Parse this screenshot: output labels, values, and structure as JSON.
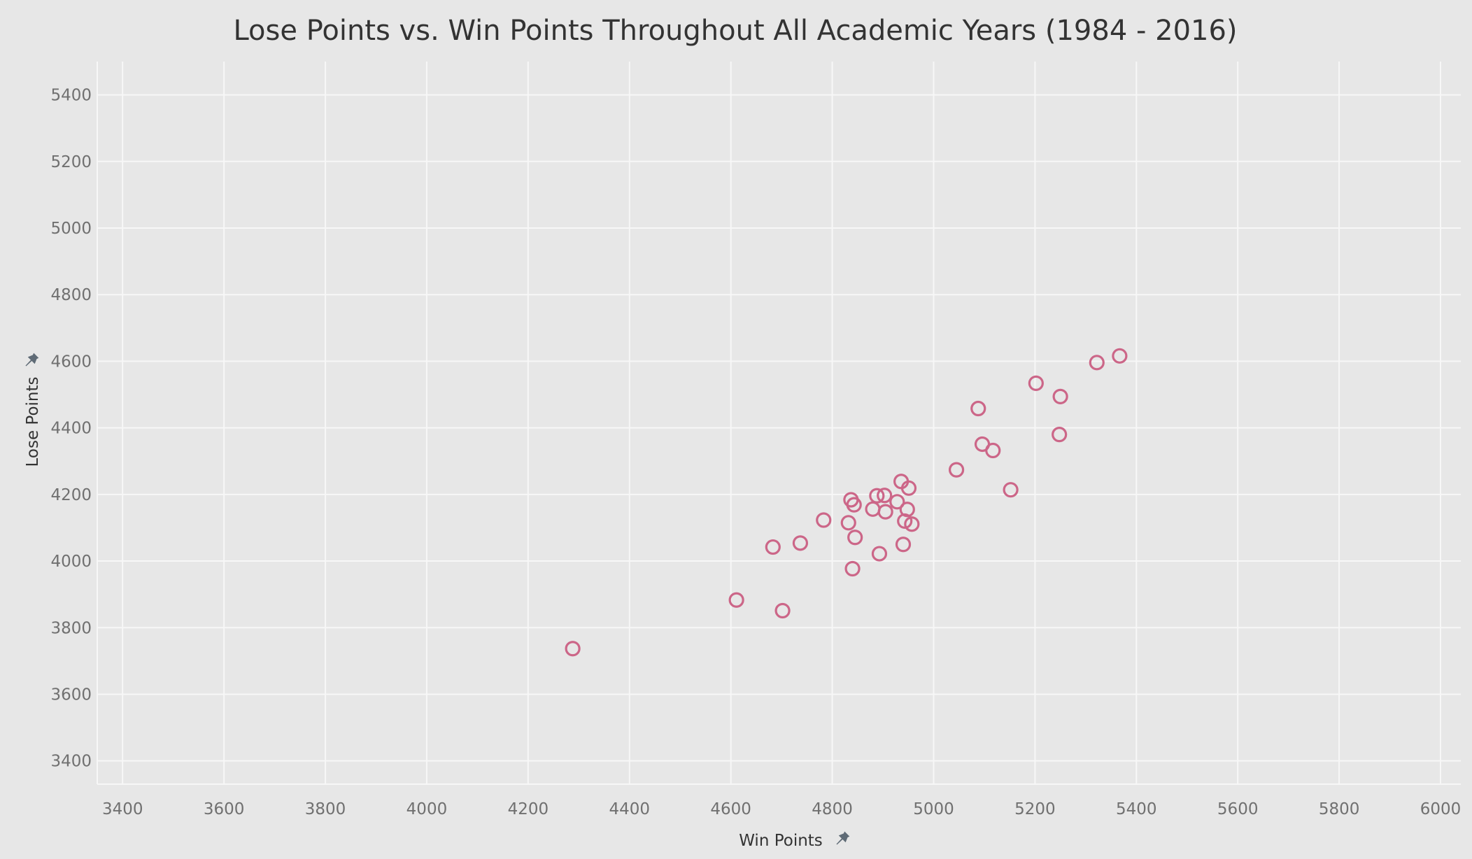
{
  "chart_data": {
    "type": "scatter",
    "title": "Lose Points vs. Win Points Throughout All Academic Years (1984 - 2016)",
    "xlabel": "Win Points",
    "ylabel": "Lose Points",
    "xlim": [
      3350,
      6040
    ],
    "ylim": [
      3330,
      5500
    ],
    "xticks": [
      3400,
      3600,
      3800,
      4000,
      4200,
      4400,
      4600,
      4800,
      5000,
      5200,
      5400,
      5600,
      5800,
      6000
    ],
    "yticks": [
      3400,
      3600,
      3800,
      4000,
      4200,
      4400,
      4600,
      4800,
      5000,
      5200,
      5400
    ],
    "grid": true,
    "marker": "hollow-circle",
    "point_color": "#cc6688",
    "axis_pin_icons": [
      "pin-icon",
      "pin-icon"
    ],
    "series": [
      {
        "points": [
          {
            "x": 4288,
            "y": 3737
          },
          {
            "x": 4611,
            "y": 3883
          },
          {
            "x": 4702,
            "y": 3851
          },
          {
            "x": 4683,
            "y": 4042
          },
          {
            "x": 4737,
            "y": 4054
          },
          {
            "x": 4783,
            "y": 4123
          },
          {
            "x": 4840,
            "y": 3977
          },
          {
            "x": 4845,
            "y": 4071
          },
          {
            "x": 4832,
            "y": 4115
          },
          {
            "x": 4837,
            "y": 4184
          },
          {
            "x": 4843,
            "y": 4169
          },
          {
            "x": 4880,
            "y": 4156
          },
          {
            "x": 4888,
            "y": 4196
          },
          {
            "x": 4893,
            "y": 4022
          },
          {
            "x": 4903,
            "y": 4197
          },
          {
            "x": 4905,
            "y": 4148
          },
          {
            "x": 4928,
            "y": 4178
          },
          {
            "x": 4936,
            "y": 4239
          },
          {
            "x": 4940,
            "y": 4050
          },
          {
            "x": 4943,
            "y": 4120
          },
          {
            "x": 4948,
            "y": 4155
          },
          {
            "x": 4951,
            "y": 4219
          },
          {
            "x": 4957,
            "y": 4111
          },
          {
            "x": 5045,
            "y": 4274
          },
          {
            "x": 5088,
            "y": 4458
          },
          {
            "x": 5096,
            "y": 4351
          },
          {
            "x": 5117,
            "y": 4332
          },
          {
            "x": 5152,
            "y": 4214
          },
          {
            "x": 5202,
            "y": 4534
          },
          {
            "x": 5248,
            "y": 4380
          },
          {
            "x": 5250,
            "y": 4494
          },
          {
            "x": 5322,
            "y": 4596
          },
          {
            "x": 5367,
            "y": 4616
          }
        ]
      }
    ]
  }
}
